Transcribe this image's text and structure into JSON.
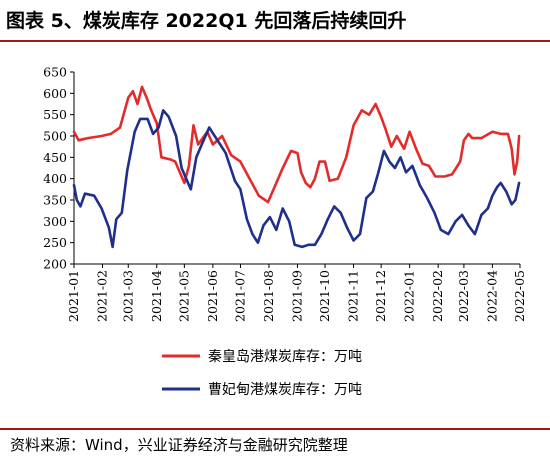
{
  "title": "图表 5、煤炭库存 2022Q1 先回落后持续回升",
  "source": "资料来源：Wind，兴业证券经济与金融研究院整理",
  "colors": {
    "rule": "#a31818",
    "series1": "#e32b2b",
    "series2": "#1f2f8c"
  },
  "chart_data": {
    "type": "line",
    "title": "图表 5、煤炭库存 2022Q1 先回落后持续回升",
    "xlabel": "",
    "ylabel": "",
    "ylim": [
      200,
      650
    ],
    "yticks": [
      200,
      250,
      300,
      350,
      400,
      450,
      500,
      550,
      600,
      650
    ],
    "xticks": [
      "2021-01",
      "2021-02",
      "2021-03",
      "2021-04",
      "2021-05",
      "2021-06",
      "2021-07",
      "2021-08",
      "2021-09",
      "2021-10",
      "2021-11",
      "2021-12",
      "2022-01",
      "2022-02",
      "2022-03",
      "2022-04",
      "2022-05"
    ],
    "xrange": [
      "2021-01-01",
      "2022-05-01"
    ],
    "legend_position": "bottom-center",
    "grid": false,
    "series": [
      {
        "name": "秦皇岛港煤炭库存：万吨",
        "color": "#e32b2b",
        "points": [
          [
            "2021-01-01",
            510
          ],
          [
            "2021-01-06",
            490
          ],
          [
            "2021-01-16",
            495
          ],
          [
            "2021-01-31",
            500
          ],
          [
            "2021-02-10",
            505
          ],
          [
            "2021-02-20",
            520
          ],
          [
            "2021-03-01",
            590
          ],
          [
            "2021-03-06",
            605
          ],
          [
            "2021-03-11",
            575
          ],
          [
            "2021-03-16",
            615
          ],
          [
            "2021-03-21",
            590
          ],
          [
            "2021-03-26",
            560
          ],
          [
            "2021-04-01",
            530
          ],
          [
            "2021-04-06",
            450
          ],
          [
            "2021-04-16",
            445
          ],
          [
            "2021-04-21",
            440
          ],
          [
            "2021-05-01",
            390
          ],
          [
            "2021-05-06",
            430
          ],
          [
            "2021-05-11",
            525
          ],
          [
            "2021-05-16",
            480
          ],
          [
            "2021-05-26",
            510
          ],
          [
            "2021-06-01",
            480
          ],
          [
            "2021-06-11",
            500
          ],
          [
            "2021-06-21",
            455
          ],
          [
            "2021-07-01",
            440
          ],
          [
            "2021-07-11",
            400
          ],
          [
            "2021-07-21",
            360
          ],
          [
            "2021-07-31",
            345
          ],
          [
            "2021-08-08",
            385
          ],
          [
            "2021-08-15",
            420
          ],
          [
            "2021-08-25",
            465
          ],
          [
            "2021-09-01",
            460
          ],
          [
            "2021-09-05",
            415
          ],
          [
            "2021-09-10",
            390
          ],
          [
            "2021-09-15",
            380
          ],
          [
            "2021-09-20",
            400
          ],
          [
            "2021-09-25",
            440
          ],
          [
            "2021-10-01",
            440
          ],
          [
            "2021-10-06",
            395
          ],
          [
            "2021-10-15",
            400
          ],
          [
            "2021-10-24",
            450
          ],
          [
            "2021-11-01",
            525
          ],
          [
            "2021-11-10",
            560
          ],
          [
            "2021-11-18",
            550
          ],
          [
            "2021-11-25",
            575
          ],
          [
            "2021-12-01",
            545
          ],
          [
            "2021-12-06",
            515
          ],
          [
            "2021-12-12",
            475
          ],
          [
            "2021-12-18",
            500
          ],
          [
            "2021-12-26",
            470
          ],
          [
            "2022-01-01",
            510
          ],
          [
            "2022-01-08",
            470
          ],
          [
            "2022-01-15",
            435
          ],
          [
            "2022-01-22",
            430
          ],
          [
            "2022-01-29",
            405
          ],
          [
            "2022-02-08",
            405
          ],
          [
            "2022-02-16",
            410
          ],
          [
            "2022-02-25",
            440
          ],
          [
            "2022-03-01",
            490
          ],
          [
            "2022-03-06",
            505
          ],
          [
            "2022-03-10",
            495
          ],
          [
            "2022-03-20",
            495
          ],
          [
            "2022-04-01",
            510
          ],
          [
            "2022-04-10",
            505
          ],
          [
            "2022-04-18",
            505
          ],
          [
            "2022-04-22",
            470
          ],
          [
            "2022-04-25",
            410
          ],
          [
            "2022-04-28",
            440
          ],
          [
            "2022-04-30",
            500
          ]
        ]
      },
      {
        "name": "曹妃甸港煤炭库存：万吨",
        "color": "#1f2f8c",
        "points": [
          [
            "2021-01-01",
            385
          ],
          [
            "2021-01-04",
            350
          ],
          [
            "2021-01-08",
            335
          ],
          [
            "2021-01-13",
            365
          ],
          [
            "2021-01-23",
            360
          ],
          [
            "2021-01-31",
            330
          ],
          [
            "2021-02-08",
            285
          ],
          [
            "2021-02-12",
            240
          ],
          [
            "2021-02-16",
            305
          ],
          [
            "2021-02-22",
            320
          ],
          [
            "2021-02-28",
            420
          ],
          [
            "2021-03-08",
            510
          ],
          [
            "2021-03-14",
            540
          ],
          [
            "2021-03-22",
            540
          ],
          [
            "2021-03-28",
            505
          ],
          [
            "2021-04-03",
            520
          ],
          [
            "2021-04-08",
            560
          ],
          [
            "2021-04-14",
            545
          ],
          [
            "2021-04-22",
            500
          ],
          [
            "2021-04-28",
            425
          ],
          [
            "2021-05-03",
            400
          ],
          [
            "2021-05-08",
            375
          ],
          [
            "2021-05-14",
            450
          ],
          [
            "2021-05-21",
            485
          ],
          [
            "2021-05-28",
            520
          ],
          [
            "2021-06-06",
            490
          ],
          [
            "2021-06-15",
            460
          ],
          [
            "2021-06-25",
            395
          ],
          [
            "2021-07-01",
            375
          ],
          [
            "2021-07-08",
            305
          ],
          [
            "2021-07-14",
            270
          ],
          [
            "2021-07-20",
            250
          ],
          [
            "2021-07-26",
            290
          ],
          [
            "2021-08-02",
            310
          ],
          [
            "2021-08-09",
            280
          ],
          [
            "2021-08-16",
            330
          ],
          [
            "2021-08-23",
            300
          ],
          [
            "2021-08-29",
            245
          ],
          [
            "2021-09-06",
            240
          ],
          [
            "2021-09-13",
            245
          ],
          [
            "2021-09-20",
            245
          ],
          [
            "2021-09-27",
            270
          ],
          [
            "2021-10-04",
            305
          ],
          [
            "2021-10-11",
            335
          ],
          [
            "2021-10-18",
            320
          ],
          [
            "2021-10-25",
            285
          ],
          [
            "2021-11-01",
            255
          ],
          [
            "2021-11-08",
            270
          ],
          [
            "2021-11-15",
            355
          ],
          [
            "2021-11-22",
            370
          ],
          [
            "2021-11-28",
            415
          ],
          [
            "2021-12-04",
            465
          ],
          [
            "2021-12-10",
            440
          ],
          [
            "2021-12-16",
            425
          ],
          [
            "2021-12-22",
            450
          ],
          [
            "2021-12-28",
            415
          ],
          [
            "2022-01-04",
            430
          ],
          [
            "2022-01-12",
            385
          ],
          [
            "2022-01-20",
            355
          ],
          [
            "2022-01-28",
            320
          ],
          [
            "2022-02-04",
            280
          ],
          [
            "2022-02-12",
            270
          ],
          [
            "2022-02-20",
            300
          ],
          [
            "2022-02-27",
            315
          ],
          [
            "2022-03-06",
            290
          ],
          [
            "2022-03-13",
            270
          ],
          [
            "2022-03-20",
            315
          ],
          [
            "2022-03-27",
            330
          ],
          [
            "2022-04-01",
            360
          ],
          [
            "2022-04-06",
            380
          ],
          [
            "2022-04-10",
            390
          ],
          [
            "2022-04-16",
            370
          ],
          [
            "2022-04-22",
            340
          ],
          [
            "2022-04-26",
            350
          ],
          [
            "2022-04-30",
            390
          ]
        ]
      }
    ]
  }
}
